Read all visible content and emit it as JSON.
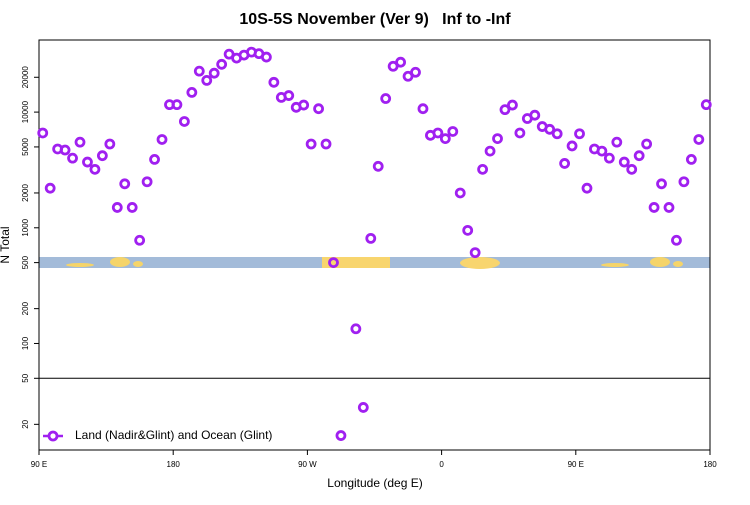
{
  "chart_data": {
    "type": "scatter",
    "title": "10S-5S November (Ver 9)   Inf to -Inf",
    "x_label": "Longitude (deg E)",
    "y_label": "N Total",
    "y_log": true,
    "reference_line": 50,
    "legend_position": "bottom-left",
    "x": [
      92.5,
      97.5,
      102.5,
      107.5,
      112.5,
      117.5,
      122.5,
      127.5,
      132.5,
      137.5,
      142.5,
      147.5,
      152.5,
      157.5,
      162.5,
      167.5,
      172.5,
      177.5,
      182.5,
      187.5,
      192.5,
      197.5,
      202.5,
      207.5,
      212.5,
      217.5,
      222.5,
      227.5,
      232.5,
      237.5,
      242.5,
      247.5,
      252.5,
      257.5,
      262.5,
      267.5,
      272.5,
      277.5,
      282.5,
      287.5,
      292.5,
      297.5,
      302.5,
      307.5,
      312.5,
      317.5,
      322.5,
      327.5,
      332.5,
      337.5,
      342.5,
      347.5,
      352.5,
      357.5,
      362.5,
      367.5,
      372.5,
      377.5,
      382.5,
      387.5,
      392.5,
      397.5,
      402.5,
      407.5,
      412.5,
      417.5,
      422.5,
      427.5,
      432.5,
      437.5,
      442.5,
      447.5,
      452.5,
      457.5,
      462.5,
      467.5,
      472.5,
      477.5,
      482.5,
      487.5,
      492.5,
      497.5,
      502.5,
      507.5,
      512.5,
      517.5,
      522.5,
      527.5,
      532.5,
      537.5
    ],
    "series": [
      {
        "name": "Land (Nadir&Glint) and Ocean (Glint)",
        "color": "#a020f0",
        "values": [
          6600,
          2200,
          4800,
          4700,
          4000,
          5500,
          3700,
          3200,
          4200,
          5300,
          1500,
          2400,
          1500,
          780,
          2500,
          3900,
          5800,
          11600,
          11600,
          8300,
          14800,
          22600,
          18800,
          21700,
          25900,
          31700,
          29300,
          31100,
          33000,
          32000,
          29900,
          18100,
          13400,
          13900,
          11000,
          11500,
          5300,
          10700,
          5300,
          500,
          16,
          null,
          134,
          28,
          810,
          3400,
          13100,
          24900,
          27000,
          20400,
          22100,
          10700,
          6300,
          6600,
          5900,
          6800,
          2000,
          950,
          610,
          3200,
          4600,
          5900,
          10500,
          11500,
          6600,
          8800,
          9400,
          7500,
          7100,
          6500,
          3600,
          5100,
          6500,
          2200,
          4800,
          4600,
          4000,
          5500,
          3700,
          3200,
          4200,
          5300,
          1500,
          2400,
          1500,
          780,
          2500,
          3900,
          5800,
          11600
        ]
      }
    ],
    "xlim": [
      90,
      540
    ],
    "xticks": [
      {
        "value": 90,
        "label": "90 E"
      },
      180,
      {
        "value": 270,
        "label": "90 W"
      },
      {
        "value": 360,
        "label": "0"
      },
      {
        "value": 450,
        "label": "90 E"
      },
      {
        "value": 540,
        "label": "180"
      }
    ],
    "ylim": [
      12,
      42000
    ],
    "yticks": [
      20,
      50,
      100,
      200,
      500,
      1000,
      2000,
      5000,
      10000,
      20000
    ]
  }
}
